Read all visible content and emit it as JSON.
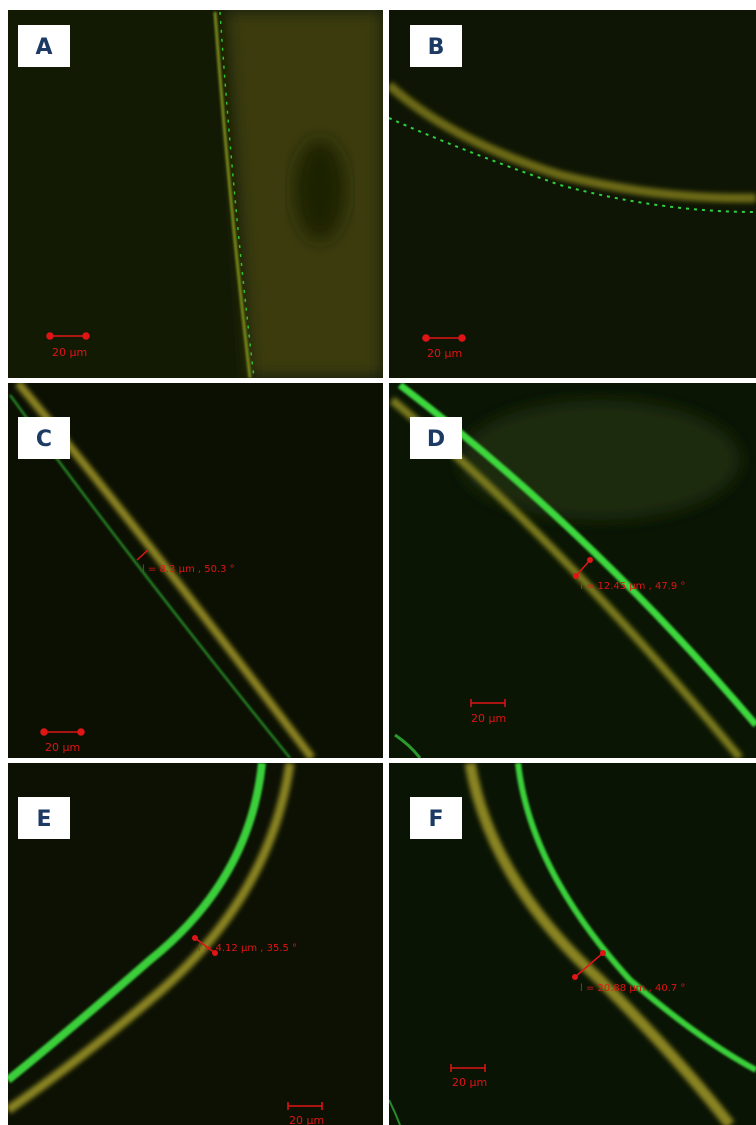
{
  "panels": [
    {
      "label": "A",
      "scale_bar": "20 µm"
    },
    {
      "label": "B",
      "scale_bar": "20 µm"
    },
    {
      "label": "C",
      "scale_bar": "20 µm",
      "measurement": "l = 8.3 µm , 50.3 °"
    },
    {
      "label": "D",
      "scale_bar": "20 µm",
      "measurement": "l = 12.45 µm , 47.9 °"
    },
    {
      "label": "E",
      "scale_bar": "20 µm",
      "measurement": "l = 4.12 µm , 35.5 °"
    },
    {
      "label": "F",
      "scale_bar": "20 µm",
      "measurement": "l = 20.88 µm , 40.7 °"
    }
  ]
}
